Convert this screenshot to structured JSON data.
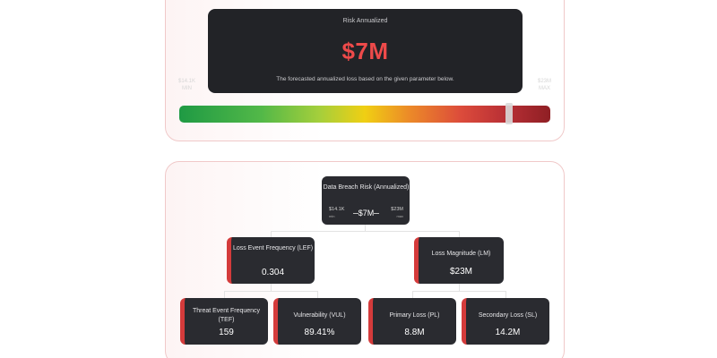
{
  "risk": {
    "title": "Risk Annualized",
    "value": "$7M",
    "description": "The forecasted annualized loss based on the given parameter below.",
    "min_label": "$14.1K",
    "min_sub": "MIN",
    "max_label": "$23M",
    "max_sub": "MAX",
    "slider_level_percent": 89
  },
  "colors": {
    "accent_red": "#d43b3b",
    "value_red": "#ee4a4a",
    "card_bg": "#222327"
  },
  "tree": {
    "root": {
      "title": "Data Breach Risk (Annualized)",
      "value": "$7M",
      "min": "$14.1K",
      "min_sub": "min",
      "max": "$23M",
      "max_sub": "max"
    },
    "lef": {
      "title": "Loss Event Frequency (LEF)",
      "value": "0.304"
    },
    "lm": {
      "title": "Loss Magnitude (LM)",
      "value": "$23M"
    },
    "tef": {
      "title": "Threat Event Frequency (TEF)",
      "value": "159"
    },
    "vul": {
      "title": "Vulnerability (VUL)",
      "value": "89.41%"
    },
    "pl": {
      "title": "Primary Loss (PL)",
      "value": "8.8M"
    },
    "sl": {
      "title": "Secondary Loss (SL)",
      "value": "14.2M"
    }
  }
}
